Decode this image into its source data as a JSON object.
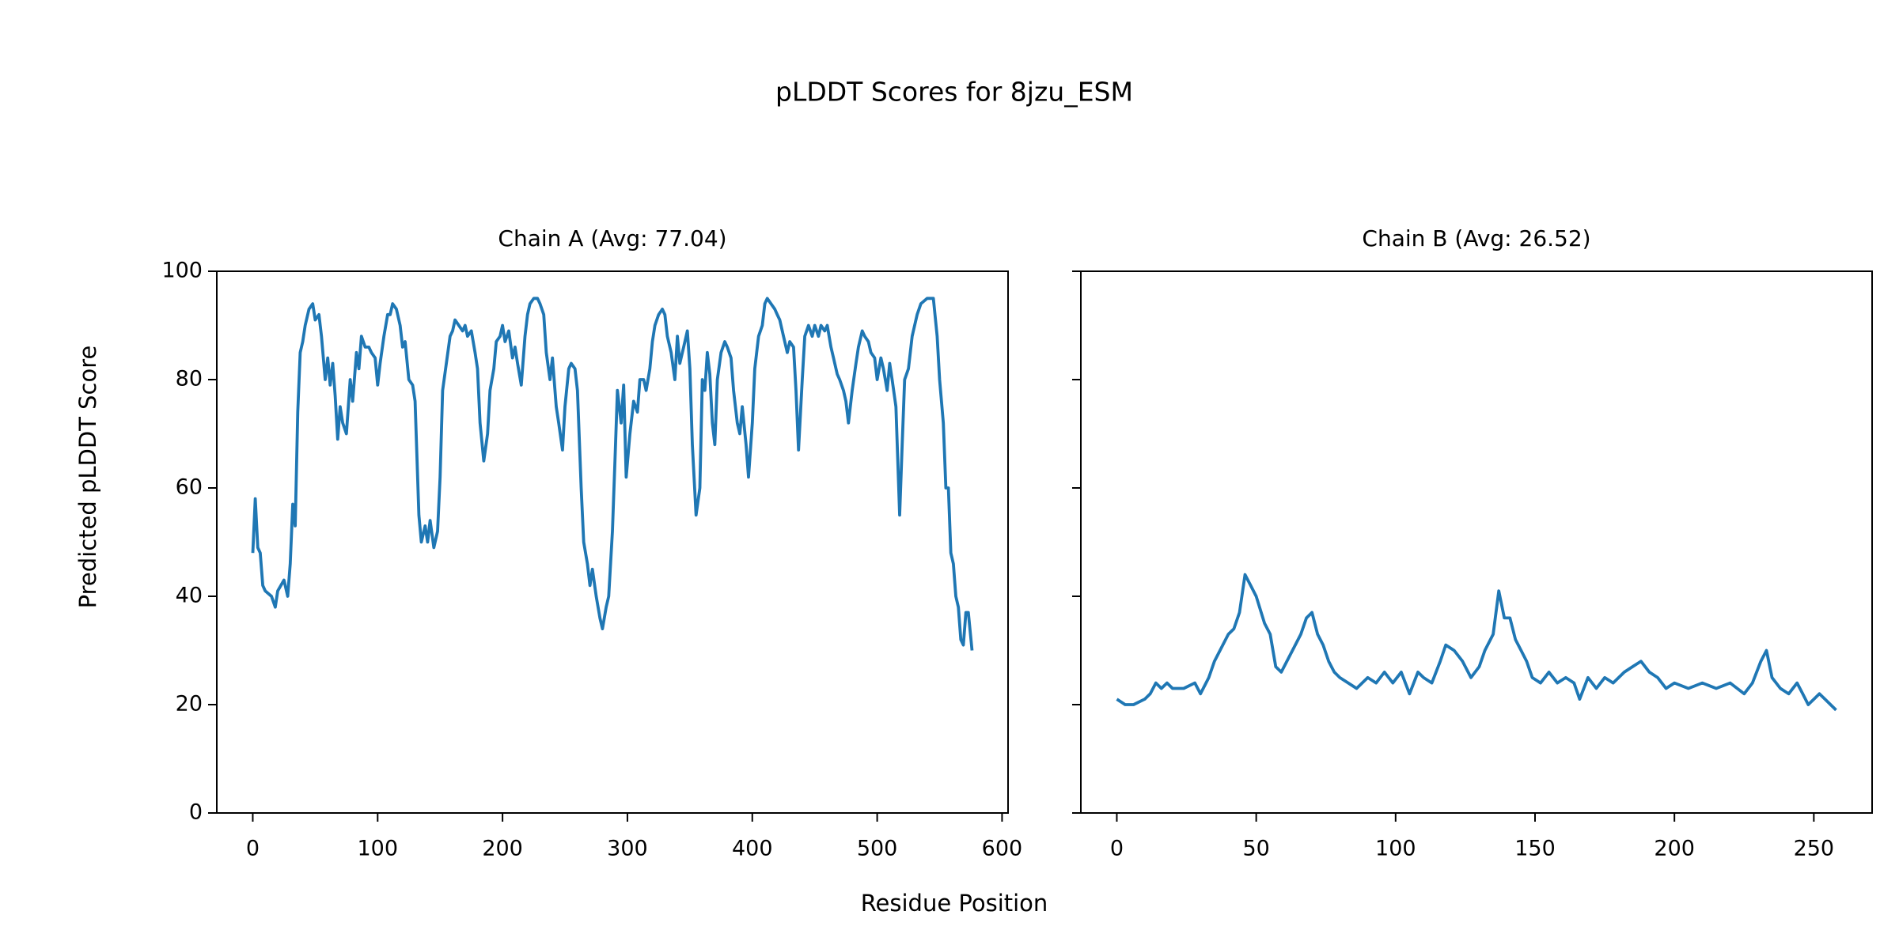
{
  "figure": {
    "title": "pLDDT Scores for 8jzu_ESM",
    "xlabel": "Residue Position",
    "ylabel": "Predicted pLDDT Score"
  },
  "chart_data": [
    {
      "type": "line",
      "title": "Chain A (Avg: 77.04)",
      "color": "#1f77b4",
      "x": [
        0,
        2,
        4,
        6,
        8,
        10,
        15,
        18,
        20,
        25,
        28,
        30,
        32,
        34,
        36,
        38,
        40,
        42,
        45,
        48,
        50,
        53,
        55,
        58,
        60,
        62,
        64,
        66,
        68,
        70,
        72,
        75,
        78,
        80,
        83,
        85,
        87,
        90,
        93,
        95,
        98,
        100,
        102,
        105,
        108,
        110,
        112,
        115,
        118,
        120,
        122,
        125,
        128,
        130,
        133,
        135,
        138,
        140,
        142,
        145,
        148,
        150,
        152,
        155,
        158,
        160,
        162,
        165,
        168,
        170,
        172,
        175,
        178,
        180,
        182,
        185,
        188,
        190,
        193,
        195,
        198,
        200,
        202,
        205,
        208,
        210,
        212,
        215,
        218,
        220,
        222,
        225,
        228,
        230,
        233,
        235,
        238,
        240,
        243,
        245,
        248,
        250,
        253,
        255,
        258,
        260,
        263,
        265,
        268,
        270,
        272,
        275,
        278,
        280,
        283,
        285,
        288,
        290,
        292,
        295,
        297,
        299,
        302,
        305,
        308,
        310,
        313,
        315,
        318,
        320,
        322,
        325,
        328,
        330,
        332,
        335,
        338,
        340,
        342,
        345,
        348,
        350,
        352,
        355,
        358,
        360,
        362,
        364,
        366,
        368,
        370,
        372,
        375,
        378,
        380,
        383,
        385,
        388,
        390,
        392,
        395,
        397,
        400,
        402,
        405,
        408,
        410,
        412,
        415,
        418,
        420,
        422,
        425,
        428,
        430,
        433,
        435,
        437,
        440,
        442,
        445,
        448,
        450,
        453,
        455,
        458,
        460,
        463,
        465,
        468,
        470,
        473,
        475,
        477,
        480,
        483,
        485,
        488,
        490,
        493,
        495,
        498,
        500,
        503,
        505,
        508,
        510,
        512,
        515,
        518,
        520,
        522,
        525,
        528,
        532,
        535,
        540,
        545,
        548,
        550,
        553,
        555,
        557,
        559,
        561,
        563,
        565,
        567,
        569,
        571,
        573,
        576
      ],
      "values": [
        48,
        58,
        49,
        48,
        42,
        41,
        40,
        38,
        41,
        43,
        40,
        46,
        57,
        53,
        74,
        85,
        87,
        90,
        93,
        94,
        91,
        92,
        88,
        80,
        84,
        79,
        83,
        77,
        69,
        75,
        72,
        70,
        80,
        76,
        85,
        82,
        88,
        86,
        86,
        85,
        84,
        79,
        83,
        88,
        92,
        92,
        94,
        93,
        90,
        86,
        87,
        80,
        79,
        76,
        55,
        50,
        53,
        50,
        54,
        49,
        52,
        62,
        78,
        83,
        88,
        89,
        91,
        90,
        89,
        90,
        88,
        89,
        85,
        82,
        72,
        65,
        70,
        78,
        82,
        87,
        88,
        90,
        87,
        89,
        84,
        86,
        83,
        79,
        88,
        92,
        94,
        95,
        95,
        94,
        92,
        85,
        80,
        84,
        75,
        72,
        67,
        75,
        82,
        83,
        82,
        78,
        60,
        50,
        46,
        42,
        45,
        40,
        36,
        34,
        38,
        40,
        52,
        65,
        78,
        72,
        79,
        62,
        70,
        76,
        74,
        80,
        80,
        78,
        82,
        87,
        90,
        92,
        93,
        92,
        88,
        85,
        80,
        88,
        83,
        86,
        89,
        82,
        68,
        55,
        60,
        80,
        78,
        85,
        81,
        72,
        68,
        80,
        85,
        87,
        86,
        84,
        78,
        72,
        70,
        75,
        68,
        62,
        72,
        82,
        88,
        90,
        94,
        95,
        94,
        93,
        92,
        91,
        88,
        85,
        87,
        86,
        78,
        67,
        80,
        88,
        90,
        88,
        90,
        88,
        90,
        89,
        90,
        86,
        84,
        81,
        80,
        78,
        76,
        72,
        78,
        83,
        86,
        89,
        88,
        87,
        85,
        84,
        80,
        84,
        82,
        78,
        83,
        80,
        75,
        55,
        68,
        80,
        82,
        88,
        92,
        94,
        95,
        95,
        88,
        80,
        72,
        60,
        60,
        48,
        46,
        40,
        38,
        32,
        31,
        37,
        37,
        30
      ],
      "xlim": [
        -28.8,
        604.8
      ],
      "xticks": [
        0,
        100,
        200,
        300,
        400,
        500,
        600
      ],
      "ylim": [
        0,
        100
      ],
      "yticks": [
        0,
        20,
        40,
        60,
        80,
        100
      ]
    },
    {
      "type": "line",
      "title": "Chain B (Avg: 26.52)",
      "color": "#1f77b4",
      "x": [
        0,
        3,
        6,
        10,
        12,
        14,
        16,
        18,
        20,
        24,
        28,
        30,
        33,
        35,
        38,
        40,
        42,
        44,
        46,
        48,
        50,
        53,
        55,
        57,
        59,
        62,
        64,
        66,
        68,
        70,
        72,
        74,
        76,
        78,
        80,
        83,
        86,
        90,
        93,
        96,
        99,
        102,
        105,
        108,
        110,
        113,
        116,
        118,
        121,
        124,
        127,
        130,
        132,
        135,
        137,
        139,
        141,
        143,
        145,
        147,
        149,
        152,
        155,
        158,
        161,
        164,
        166,
        169,
        172,
        175,
        178,
        182,
        185,
        188,
        191,
        194,
        197,
        200,
        205,
        210,
        215,
        220,
        225,
        228,
        231,
        233,
        235,
        238,
        241,
        244,
        246,
        248,
        250,
        252,
        254,
        256,
        258
      ],
      "values": [
        21,
        20,
        20,
        21,
        22,
        24,
        23,
        24,
        23,
        23,
        24,
        22,
        25,
        28,
        31,
        33,
        34,
        37,
        44,
        42,
        40,
        35,
        33,
        27,
        26,
        29,
        31,
        33,
        36,
        37,
        33,
        31,
        28,
        26,
        25,
        24,
        23,
        25,
        24,
        26,
        24,
        26,
        22,
        26,
        25,
        24,
        28,
        31,
        30,
        28,
        25,
        27,
        30,
        33,
        41,
        36,
        36,
        32,
        30,
        28,
        25,
        24,
        26,
        24,
        25,
        24,
        21,
        25,
        23,
        25,
        24,
        26,
        27,
        28,
        26,
        25,
        23,
        24,
        23,
        24,
        23,
        24,
        22,
        24,
        28,
        30,
        25,
        23,
        22,
        24,
        22,
        20,
        21,
        22,
        21,
        20,
        19
      ],
      "xlim": [
        -12.9,
        270.9
      ],
      "xticks": [
        0,
        50,
        100,
        150,
        200,
        250
      ],
      "ylim": [
        0,
        100
      ],
      "yticks": [
        0,
        20,
        40,
        60,
        80,
        100
      ]
    }
  ]
}
